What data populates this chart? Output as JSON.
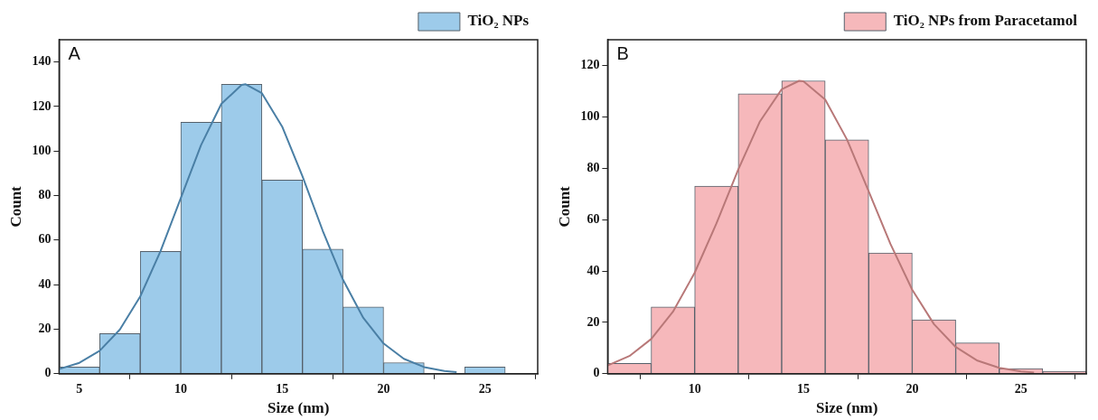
{
  "chart_data": [
    {
      "type": "histogram",
      "annotations": [
        "A"
      ],
      "xlabel": "Size (nm)",
      "ylabel": "Count",
      "legend": "top right",
      "grid": false,
      "bins": [
        4,
        6,
        8,
        10,
        12,
        14,
        16,
        18,
        20,
        22,
        24,
        26
      ],
      "series": [
        {
          "name": "TiO₂ NPs",
          "color": "#9dcbea",
          "values": [
            3,
            18,
            55,
            113,
            130,
            87,
            56,
            30,
            5,
            0,
            3
          ]
        },
        {
          "type": "line",
          "marker": "none",
          "color": "#4a7fa5",
          "x": [
            4,
            5,
            6,
            7,
            8,
            9,
            10,
            11,
            12,
            13,
            13.2,
            14,
            15,
            16,
            17,
            18,
            19,
            20,
            21,
            22,
            23,
            23.6
          ],
          "values": [
            2.1,
            4.9,
            10.3,
            19.9,
            34.7,
            55,
            78.9,
            102.7,
            121.2,
            129.7,
            130,
            126,
            111,
            88.7,
            64.2,
            42.2,
            25.1,
            13.6,
            6.7,
            3,
            1.2,
            0.7
          ]
        }
      ],
      "xlim": [
        4,
        27.6
      ],
      "xticks": [
        5,
        10,
        15,
        20,
        25
      ],
      "ylim": [
        0,
        150
      ],
      "yticks": [
        0,
        20,
        40,
        60,
        80,
        100,
        120,
        140
      ]
    },
    {
      "type": "histogram",
      "annotations": [
        "B"
      ],
      "xlabel": "Size (nm)",
      "ylabel": "Count",
      "legend": "top right",
      "grid": false,
      "bins": [
        6,
        8,
        10,
        12,
        14,
        16,
        18,
        20,
        22,
        24,
        26,
        28
      ],
      "series": [
        {
          "name": "TiO₂ NPs from Paracetamol",
          "color": "#f6b8bb",
          "values": [
            4,
            26,
            73,
            109,
            114,
            91,
            47,
            21,
            12,
            2,
            1
          ]
        },
        {
          "type": "line",
          "marker": "none",
          "color": "#b87878",
          "x": [
            6,
            7,
            8,
            9,
            10,
            11,
            12,
            13,
            14,
            14.8,
            15,
            16,
            17,
            18,
            19,
            20,
            21,
            22,
            23,
            24,
            25,
            25.6
          ],
          "values": [
            3.2,
            6.9,
            13.5,
            24.1,
            39.3,
            58.5,
            79.4,
            98.2,
            110.7,
            114,
            113.8,
            106.7,
            91.2,
            71,
            50.5,
            32.7,
            19.3,
            10.4,
            5.1,
            2.3,
            0.9,
            0.5
          ]
        }
      ],
      "xlim": [
        6,
        28
      ],
      "xticks": [
        10,
        15,
        20,
        25
      ],
      "ylim": [
        0,
        130
      ],
      "yticks": [
        0,
        20,
        40,
        60,
        80,
        100,
        120
      ]
    }
  ]
}
